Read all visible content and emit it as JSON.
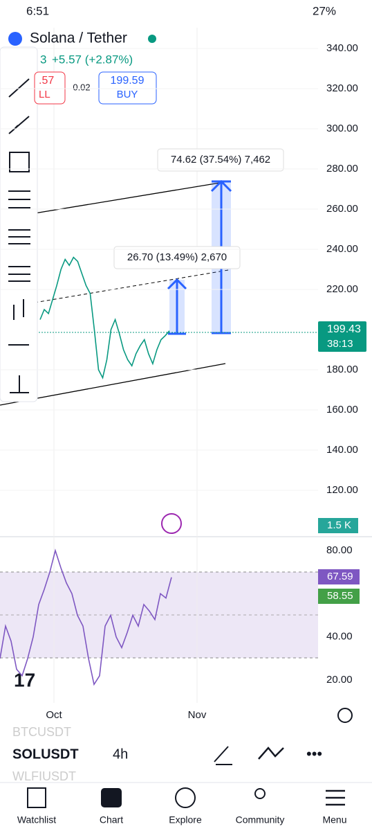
{
  "status_bar": {
    "time": "6:51",
    "battery": "27%"
  },
  "header": {
    "title": "Solana / Tether",
    "last_fragment": "3",
    "change": "+5.57 (+2.87%)",
    "sell_price": ".57",
    "sell_label": "LL",
    "spread": "0.02",
    "buy_price": "199.59",
    "buy_label": "BUY"
  },
  "price_axis": {
    "range": [
      100,
      340
    ],
    "ticks": [
      {
        "value": 340,
        "label": "340.00"
      },
      {
        "value": 320,
        "label": "320.00"
      },
      {
        "value": 300,
        "label": "300.00"
      },
      {
        "value": 280,
        "label": "280.00"
      },
      {
        "value": 260,
        "label": "260.00"
      },
      {
        "value": 240,
        "label": "240.00"
      },
      {
        "value": 220,
        "label": "220.00"
      },
      {
        "value": 180,
        "label": "180.00"
      },
      {
        "value": 160,
        "label": "160.00"
      },
      {
        "value": 140,
        "label": "140.00"
      },
      {
        "value": 120,
        "label": "120.00"
      }
    ]
  },
  "last_price": {
    "value": 199.43,
    "label": "199.43",
    "countdown": "38:13"
  },
  "volume_label": "1.5 K",
  "price_series": [
    205,
    210,
    208,
    215,
    222,
    230,
    235,
    232,
    236,
    234,
    228,
    222,
    218,
    200,
    180,
    176,
    185,
    200,
    205,
    198,
    190,
    185,
    182,
    188,
    192,
    195,
    188,
    183,
    190,
    195,
    197,
    199.43
  ],
  "measurements": [
    "74.62 (37.54%) 7,462",
    "26.70 (13.49%) 2,670"
  ],
  "rsi_axis": {
    "range": [
      0,
      100
    ],
    "ticks": [
      {
        "value": 80,
        "label": "80.00"
      },
      {
        "value": 40,
        "label": "40.00"
      },
      {
        "value": 20,
        "label": "20.00"
      }
    ]
  },
  "rsi_series": [
    30,
    45,
    38,
    25,
    22,
    30,
    40,
    55,
    62,
    70,
    80,
    72,
    65,
    60,
    50,
    45,
    30,
    18,
    22,
    45,
    50,
    40,
    35,
    42,
    50,
    45,
    55,
    52,
    48,
    60,
    58,
    67.59
  ],
  "rsi_labels": [
    "67.59",
    "58.55"
  ],
  "time_axis": [
    "Oct",
    "Nov"
  ],
  "symbols": [
    "BTCUSDT",
    "SOLUSDT",
    "WLFIUSDT"
  ],
  "interval": "4h",
  "nav": [
    "Watchlist",
    "Chart",
    "Explore",
    "Community",
    "Menu"
  ]
}
